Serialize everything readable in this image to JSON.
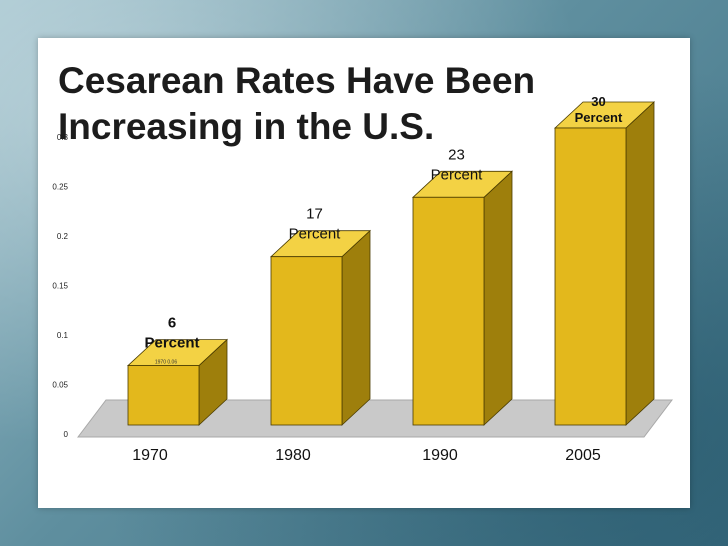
{
  "slide": {
    "title_line1": "Cesarean Rates Have Been",
    "title_line2": "Increasing in the U.S."
  },
  "colors": {
    "bar_front": "#e3b81c",
    "bar_side": "#9e7f0c",
    "bar_top": "#f3d244",
    "floor": "#c9c9c9",
    "floor_edge": "#a8a8a8"
  },
  "chart_data": {
    "type": "bar",
    "categories": [
      "1970",
      "1980",
      "1990",
      "2005"
    ],
    "values": [
      0.06,
      0.17,
      0.23,
      0.3
    ],
    "ylim": [
      0,
      0.3
    ],
    "yticks": [
      "0",
      "0.05",
      "0.1",
      "0.15",
      "0.2",
      "0.25",
      "0.3"
    ],
    "grid": false,
    "data_labels": [
      {
        "line1": "6",
        "line2": "Percent"
      },
      {
        "line1": "17",
        "line2": "Percent"
      },
      {
        "line1": "23",
        "line2": "Percent"
      },
      {
        "line1": "30",
        "line2": "Percent"
      }
    ],
    "inner_label": "1970 0.06"
  }
}
